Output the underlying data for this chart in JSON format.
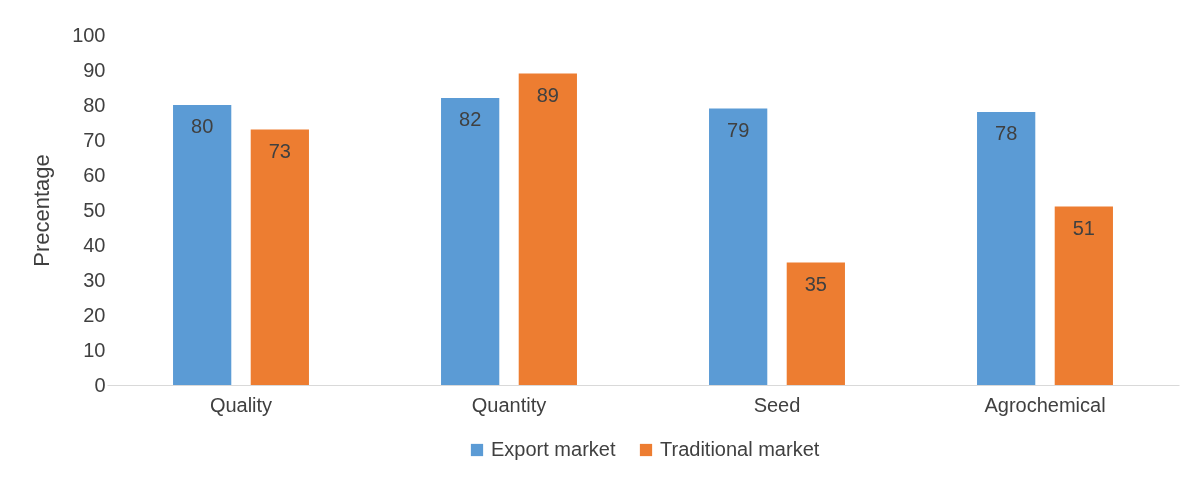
{
  "chart_data": {
    "type": "bar",
    "ylabel": "Precentage",
    "categories": [
      "Quality",
      "Quantity",
      "Seed",
      "Agrochemical"
    ],
    "series": [
      {
        "name": "Export market",
        "color": "#5b9bd5",
        "values": [
          80,
          82,
          79,
          78
        ]
      },
      {
        "name": "Traditional market",
        "color": "#ed7d31",
        "values": [
          73,
          89,
          35,
          51
        ]
      }
    ],
    "ylim": [
      0,
      100
    ],
    "yticks": [
      0,
      10,
      20,
      30,
      40,
      50,
      60,
      70,
      80,
      90,
      100
    ],
    "grid": false,
    "legend": "bottom",
    "data_labels": true
  }
}
